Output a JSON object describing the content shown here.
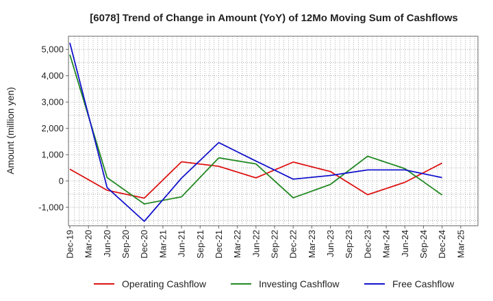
{
  "chart_data": {
    "type": "line",
    "title": "[6078]  Trend of Change in Amount (YoY) of 12Mo Moving Sum of Cashflows",
    "xlabel": "",
    "ylabel": "Amount (million yen)",
    "categories": [
      "Dec-19",
      "Mar-20",
      "Jun-20",
      "Sep-20",
      "Dec-20",
      "Mar-21",
      "Jun-21",
      "Sep-21",
      "Dec-21",
      "Mar-22",
      "Jun-22",
      "Sep-22",
      "Dec-22",
      "Mar-23",
      "Jun-23",
      "Sep-23",
      "Dec-23",
      "Mar-24",
      "Jun-24",
      "Sep-24",
      "Dec-24",
      "Mar-25"
    ],
    "ylim": [
      -1700,
      5500
    ],
    "yticks": [
      -1000,
      0,
      1000,
      2000,
      3000,
      4000,
      5000
    ],
    "ytick_labels": [
      "-1,000",
      "0",
      "1,000",
      "2,000",
      "3,000",
      "4,000",
      "5,000"
    ],
    "grid": true,
    "legend_position": "bottom",
    "series": [
      {
        "name": "Operating Cashflow",
        "color": "#dd1111",
        "points": [
          {
            "x": "Dec-19",
            "y": 450
          },
          {
            "x": "Jun-20",
            "y": -350
          },
          {
            "x": "Dec-20",
            "y": -650
          },
          {
            "x": "Jun-21",
            "y": 730
          },
          {
            "x": "Dec-21",
            "y": 560
          },
          {
            "x": "Jun-22",
            "y": 120
          },
          {
            "x": "Dec-22",
            "y": 720
          },
          {
            "x": "Jun-23",
            "y": 360
          },
          {
            "x": "Dec-23",
            "y": -520
          },
          {
            "x": "Jun-24",
            "y": -50
          },
          {
            "x": "Dec-24",
            "y": 680
          }
        ]
      },
      {
        "name": "Investing Cashflow",
        "color": "#228822",
        "points": [
          {
            "x": "Dec-19",
            "y": 4800
          },
          {
            "x": "Jun-20",
            "y": 130
          },
          {
            "x": "Dec-20",
            "y": -870
          },
          {
            "x": "Jun-21",
            "y": -600
          },
          {
            "x": "Dec-21",
            "y": 880
          },
          {
            "x": "Jun-22",
            "y": 650
          },
          {
            "x": "Dec-22",
            "y": -640
          },
          {
            "x": "Jun-23",
            "y": -130
          },
          {
            "x": "Dec-23",
            "y": 940
          },
          {
            "x": "Jun-24",
            "y": 470
          },
          {
            "x": "Dec-24",
            "y": -530
          }
        ]
      },
      {
        "name": "Free Cashflow",
        "color": "#1111cc",
        "points": [
          {
            "x": "Dec-19",
            "y": 5250
          },
          {
            "x": "Jun-20",
            "y": -250
          },
          {
            "x": "Dec-20",
            "y": -1530
          },
          {
            "x": "Jun-21",
            "y": 110
          },
          {
            "x": "Dec-21",
            "y": 1460
          },
          {
            "x": "Jun-22",
            "y": 760
          },
          {
            "x": "Dec-22",
            "y": 70
          },
          {
            "x": "Jun-23",
            "y": 210
          },
          {
            "x": "Dec-23",
            "y": 420
          },
          {
            "x": "Jun-24",
            "y": 420
          },
          {
            "x": "Dec-24",
            "y": 130
          }
        ]
      }
    ]
  }
}
